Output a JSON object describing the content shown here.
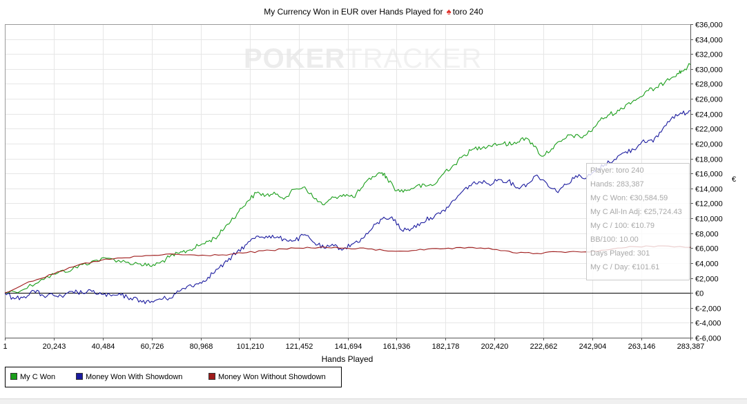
{
  "chart_data": {
    "type": "line",
    "title_prefix": "My Currency Won in EUR over Hands Played for",
    "title_player": "toro 240",
    "xlabel": "Hands Played",
    "ylabel": "€",
    "xlim": [
      1,
      283387
    ],
    "ylim": [
      -6000,
      36000
    ],
    "x_ticks": [
      "1",
      "20,243",
      "40,484",
      "60,726",
      "80,968",
      "101,210",
      "121,452",
      "141,694",
      "161,936",
      "182,178",
      "202,420",
      "222,662",
      "242,904",
      "263,146",
      "283,387"
    ],
    "x_tick_values": [
      1,
      20243,
      40484,
      60726,
      80968,
      101210,
      121452,
      141694,
      161936,
      182178,
      202420,
      222662,
      242904,
      263146,
      283387
    ],
    "y_ticks": [
      "€-6,000",
      "€-4,000",
      "€-2,000",
      "€0",
      "€2,000",
      "€4,000",
      "€6,000",
      "€8,000",
      "€10,000",
      "€12,000",
      "€14,000",
      "€16,000",
      "€18,000",
      "€20,000",
      "€22,000",
      "€24,000",
      "€26,000",
      "€28,000",
      "€30,000",
      "€32,000",
      "€34,000",
      "€36,000"
    ],
    "y_tick_values": [
      -6000,
      -4000,
      -2000,
      0,
      2000,
      4000,
      6000,
      8000,
      10000,
      12000,
      14000,
      16000,
      18000,
      20000,
      22000,
      24000,
      26000,
      28000,
      30000,
      32000,
      34000,
      36000
    ],
    "grid": true,
    "legend_position": "bottom-left",
    "series": [
      {
        "name": "My C Won",
        "color": "#1a9e1a",
        "x": [
          1,
          8000,
          15000,
          22000,
          28000,
          32000,
          38000,
          44000,
          50000,
          56000,
          60000,
          64000,
          68000,
          72000,
          76000,
          80000,
          84000,
          88000,
          92000,
          96000,
          100000,
          104000,
          108000,
          112000,
          116000,
          120000,
          124000,
          128000,
          132000,
          136000,
          140000,
          144000,
          148000,
          152000,
          156000,
          158000,
          162000,
          166000,
          170000,
          174000,
          178000,
          182000,
          186000,
          190000,
          194000,
          198000,
          202000,
          206000,
          210000,
          214000,
          218000,
          222000,
          226000,
          230000,
          234000,
          238000,
          242000,
          246000,
          250000,
          254000,
          258000,
          262000,
          266000,
          270000,
          274000,
          278000,
          280000,
          283387
        ],
        "y": [
          0,
          500,
          1800,
          2700,
          3200,
          3800,
          4400,
          4600,
          4100,
          3900,
          3600,
          4000,
          4800,
          5300,
          5700,
          6300,
          6900,
          7600,
          9200,
          10600,
          12200,
          13400,
          13100,
          13200,
          12800,
          13900,
          14200,
          12600,
          11800,
          12800,
          13200,
          12800,
          14200,
          15600,
          16100,
          15400,
          13700,
          13700,
          14300,
          14300,
          14600,
          16300,
          17200,
          18500,
          19300,
          19600,
          19900,
          20000,
          19900,
          20800,
          20100,
          18300,
          19300,
          20300,
          21200,
          20800,
          21600,
          23100,
          23900,
          24400,
          25500,
          26100,
          27100,
          27500,
          28700,
          29400,
          29700,
          30585
        ]
      },
      {
        "name": "Money Won With Showdown",
        "color": "#1a1a9e",
        "x": [
          1,
          4000,
          8000,
          12000,
          16000,
          20000,
          24000,
          28000,
          32000,
          36000,
          40000,
          44000,
          48000,
          52000,
          56000,
          60000,
          64000,
          68000,
          72000,
          76000,
          80000,
          84000,
          88000,
          92000,
          96000,
          100000,
          104000,
          108000,
          112000,
          116000,
          120000,
          124000,
          128000,
          132000,
          136000,
          140000,
          144000,
          148000,
          152000,
          156000,
          160000,
          164000,
          168000,
          172000,
          176000,
          180000,
          184000,
          188000,
          192000,
          196000,
          200000,
          204000,
          208000,
          212000,
          216000,
          220000,
          224000,
          228000,
          232000,
          236000,
          240000,
          244000,
          248000,
          252000,
          256000,
          260000,
          264000,
          268000,
          272000,
          276000,
          280000,
          283387
        ],
        "y": [
          0,
          -800,
          -500,
          300,
          -400,
          -300,
          -600,
          200,
          0,
          200,
          -200,
          -400,
          -300,
          -700,
          -1000,
          -1300,
          -800,
          -700,
          200,
          1000,
          1200,
          2100,
          3200,
          4200,
          5500,
          6500,
          7600,
          7600,
          7400,
          7200,
          7000,
          7800,
          6700,
          6000,
          6300,
          5900,
          6600,
          7300,
          8700,
          9900,
          10200,
          8400,
          8600,
          9400,
          10100,
          10600,
          11800,
          13200,
          14400,
          14900,
          14600,
          15200,
          15000,
          14100,
          14600,
          15800,
          14700,
          13600,
          14500,
          15700,
          15300,
          16300,
          17200,
          17900,
          18800,
          19200,
          20500,
          20200,
          22000,
          23600,
          24000,
          24400
        ]
      },
      {
        "name": "Money Won Without Showdown",
        "color": "#9e1a1a",
        "x": [
          1,
          10000,
          20000,
          30000,
          40000,
          50000,
          60000,
          70000,
          80000,
          90000,
          100000,
          110000,
          120000,
          130000,
          140000,
          150000,
          160000,
          170000,
          180000,
          190000,
          200000,
          210000,
          220000,
          230000,
          240000,
          250000,
          260000,
          270000,
          283387
        ],
        "y": [
          0,
          1500,
          2500,
          3700,
          4400,
          4700,
          5000,
          5200,
          5000,
          5100,
          5400,
          5700,
          6000,
          6100,
          6000,
          5900,
          5600,
          5700,
          5900,
          6000,
          6000,
          5400,
          5300,
          5500,
          5500,
          5800,
          6200,
          6300,
          6100
        ]
      }
    ]
  },
  "watermark": {
    "brand_dark": "POKER",
    "brand_light": "TRACKER"
  },
  "info_box": {
    "player": "Player: toro 240",
    "hands": "Hands: 283,387",
    "my_c_won": "My C Won: €30,584.59",
    "all_in_adj": "My C All-In Adj: €25,724.43",
    "per_100": "My C / 100: €10.79",
    "bb_100": "BB/100: 10.00",
    "days_played": "Days Played: 301",
    "per_day": "My C / Day: €101.61"
  },
  "legend": {
    "items": [
      {
        "label": "My C Won",
        "color": "#1a9e1a"
      },
      {
        "label": "Money Won With Showdown",
        "color": "#1a1a9e"
      },
      {
        "label": "Money Won Without Showdown",
        "color": "#9e1a1a"
      }
    ]
  }
}
